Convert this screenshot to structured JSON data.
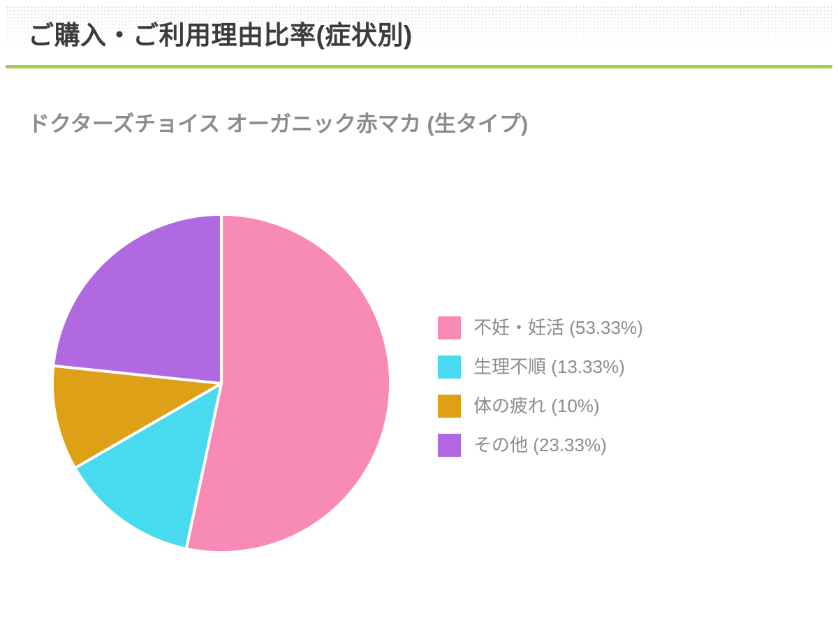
{
  "header": {
    "title": "ご購入・ご利用理由比率(症状別)"
  },
  "subtitle": "ドクターズチョイス オーガニック赤マカ (生タイプ)",
  "colors": {
    "accent_rule": "#a5cb52",
    "title_text": "#3b3b3b",
    "muted_text": "#8c8c8c",
    "background": "#ffffff"
  },
  "chart_data": {
    "type": "pie",
    "title": "ドクターズチョイス オーガニック赤マカ (生タイプ)",
    "labels": [
      "不妊・妊活",
      "生理不順",
      "体の疲れ",
      "その他"
    ],
    "values": [
      53.33,
      13.33,
      10,
      23.33
    ],
    "unit": "%",
    "colors": [
      "#f78bb5",
      "#48dbf0",
      "#dda016",
      "#b169e2"
    ],
    "legend_labels": [
      "不妊・妊活 (53.33%)",
      "生理不順 (13.33%)",
      "体の疲れ (10%)",
      "その他 (23.33%)"
    ],
    "legend_position": "right",
    "start_angle_deg": 0,
    "direction": "clockwise",
    "slice_border_color": "#ffffff"
  }
}
